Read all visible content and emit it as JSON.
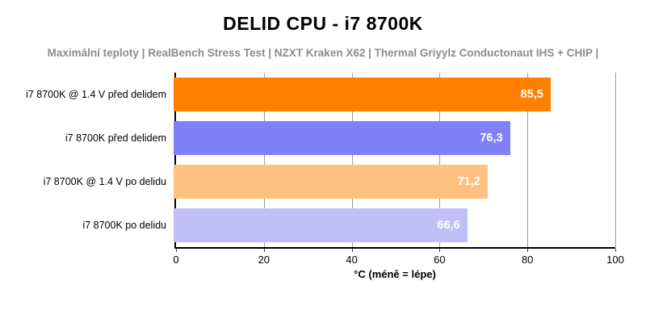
{
  "title": "DELID CPU - i7 8700K",
  "subtitle": "Maximální teploty | RealBench Stress Test | NZXT Kraken X62 | Thermal Griyylz Conductonaut IHS + CHIP |",
  "colors": {
    "background": "#ffffff",
    "title_text": "#000000",
    "subtitle_text": "#8c8c8c",
    "gridline": "#999999",
    "axis_line": "#000000",
    "value_label_text": "#ffffff"
  },
  "chart_data": {
    "type": "bar",
    "orientation": "horizontal",
    "title": "DELID CPU - i7 8700K",
    "subtitle": "Maximální teploty | RealBench Stress Test | NZXT Kraken X62 | Thermal Griyylz Conductonaut IHS + CHIP |",
    "xlabel": "°C (méně = lépe)",
    "ylabel": "",
    "xlim": [
      0,
      100
    ],
    "x_ticks": [
      0,
      20,
      40,
      60,
      80,
      100
    ],
    "grid": true,
    "legend": false,
    "categories": [
      "i7 8700K @ 1.4 V před delidem",
      "i7 8700K před delidem",
      "i7 8700K @ 1.4 V po delidu",
      "i7 8700K po delidu"
    ],
    "values": [
      85.5,
      76.3,
      71.2,
      66.6
    ],
    "value_labels": [
      "85,5",
      "76,3",
      "71,2",
      "66,6"
    ],
    "bar_colors": [
      "#ff8000",
      "#8080f8",
      "#ffc080",
      "#c0c0f8"
    ]
  }
}
